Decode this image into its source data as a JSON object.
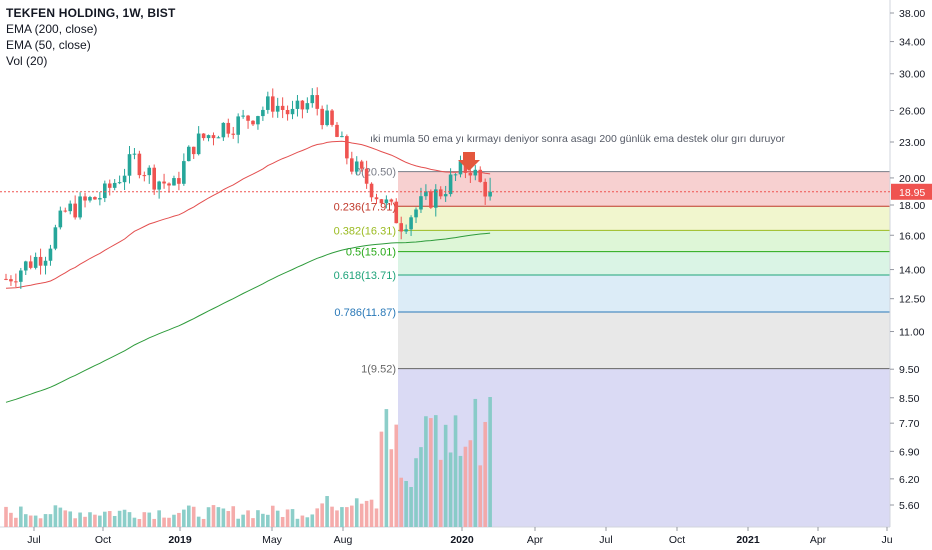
{
  "chart_data": {
    "type": "candlestick",
    "symbol_title": "TEKFEN HOLDING, 1W, BIST",
    "indicators": [
      "EMA (200, close)",
      "EMA (50, close)",
      "Vol (20)"
    ],
    "annotation": "ıki mumla 50 ema yı kırmayı deniyor sonra asagı 200 günlük ema destek olur gırı duruyor",
    "price_axis": {
      "scale": "log",
      "ticks": [
        "38.00",
        "34.00",
        "30.00",
        "26.00",
        "23.00",
        "20.00",
        "18.00",
        "16.00",
        "14.00",
        "12.50",
        "11.00",
        "9.50",
        "8.50",
        "7.70",
        "6.90",
        "6.20",
        "5.60"
      ]
    },
    "last_price": "18.95",
    "time_axis": {
      "ticks": [
        "Jul",
        "Oct",
        "2019",
        "May",
        "Aug",
        "2020",
        "Apr",
        "Jul",
        "Oct",
        "2021",
        "Apr",
        "Ju"
      ]
    },
    "fib_levels": [
      {
        "ratio": "0",
        "price": 20.5,
        "label": "0(20.50)",
        "color": "#787b86",
        "fill": "#f6c8c8"
      },
      {
        "ratio": "0.236",
        "price": 17.91,
        "label": "0.236(17.91)",
        "color": "#c0392b",
        "fill": "#eef5c6"
      },
      {
        "ratio": "0.382",
        "price": 16.31,
        "label": "0.382(16.31)",
        "color": "#9bbb21",
        "fill": "#d8f4d0"
      },
      {
        "ratio": "0.5",
        "price": 15.01,
        "label": "0.5(15.01)",
        "color": "#26a917",
        "fill": "#d3f2e0"
      },
      {
        "ratio": "0.618",
        "price": 13.71,
        "label": "0.618(13.71)",
        "color": "#1ea37a",
        "fill": "#d6e9f6"
      },
      {
        "ratio": "0.786",
        "price": 11.87,
        "label": "0.786(11.87)",
        "color": "#2a79b8",
        "fill": "#e4e4e4"
      },
      {
        "ratio": "1",
        "price": 9.52,
        "label": "1(9.52)",
        "color": "#666666",
        "fill": "#d3d3f2"
      }
    ],
    "colors": {
      "up": "#26a69a",
      "down": "#ef5350",
      "ema200": "#2e9b3b",
      "ema50": "#e34f4f"
    }
  }
}
